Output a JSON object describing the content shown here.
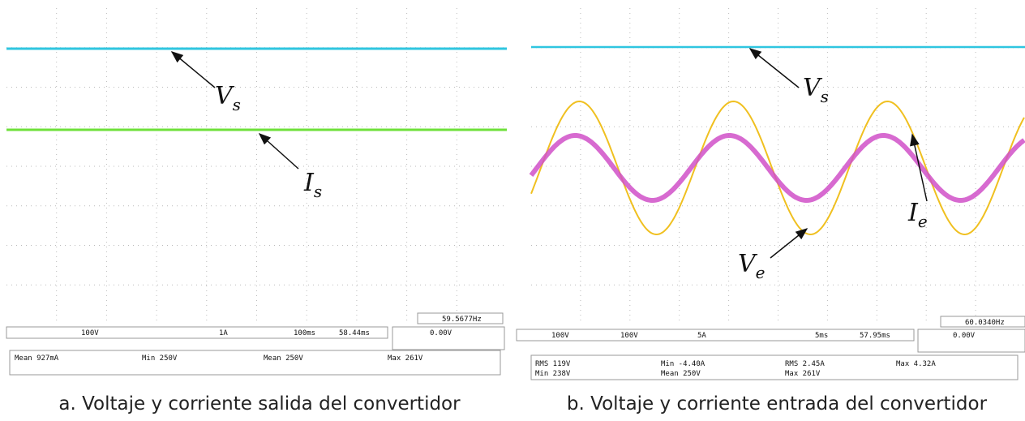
{
  "panels": [
    {
      "caption": "a. Voltaje y corriente salida del convertidor",
      "labels": [
        {
          "main": "V",
          "sub": "s"
        },
        {
          "main": "I",
          "sub": "s"
        }
      ],
      "frequency": "59.5677Hz",
      "channels": [
        "100V",
        "1A"
      ],
      "timebase": "100ms",
      "delay": "58.44ms",
      "trigger": "0.00V",
      "measurements": [
        "Mean 927mA",
        "Min 250V",
        "Mean 250V",
        "Max 261V"
      ]
    },
    {
      "caption": "b. Voltaje y corriente entrada del convertidor",
      "labels": [
        {
          "main": "V",
          "sub": "s"
        },
        {
          "main": "I",
          "sub": "e"
        },
        {
          "main": "V",
          "sub": "e"
        }
      ],
      "frequency": "60.0340Hz",
      "channels": [
        "100V",
        "100V",
        "5A"
      ],
      "timebase": "5ms",
      "delay": "57.95ms",
      "trigger": "0.00V",
      "measurements": [
        "RMS 119V",
        "Min -4.40A",
        "RMS 2.45A",
        "Max 4.32A",
        "Min 238V",
        "Mean 250V",
        "Max 261V"
      ]
    }
  ]
}
